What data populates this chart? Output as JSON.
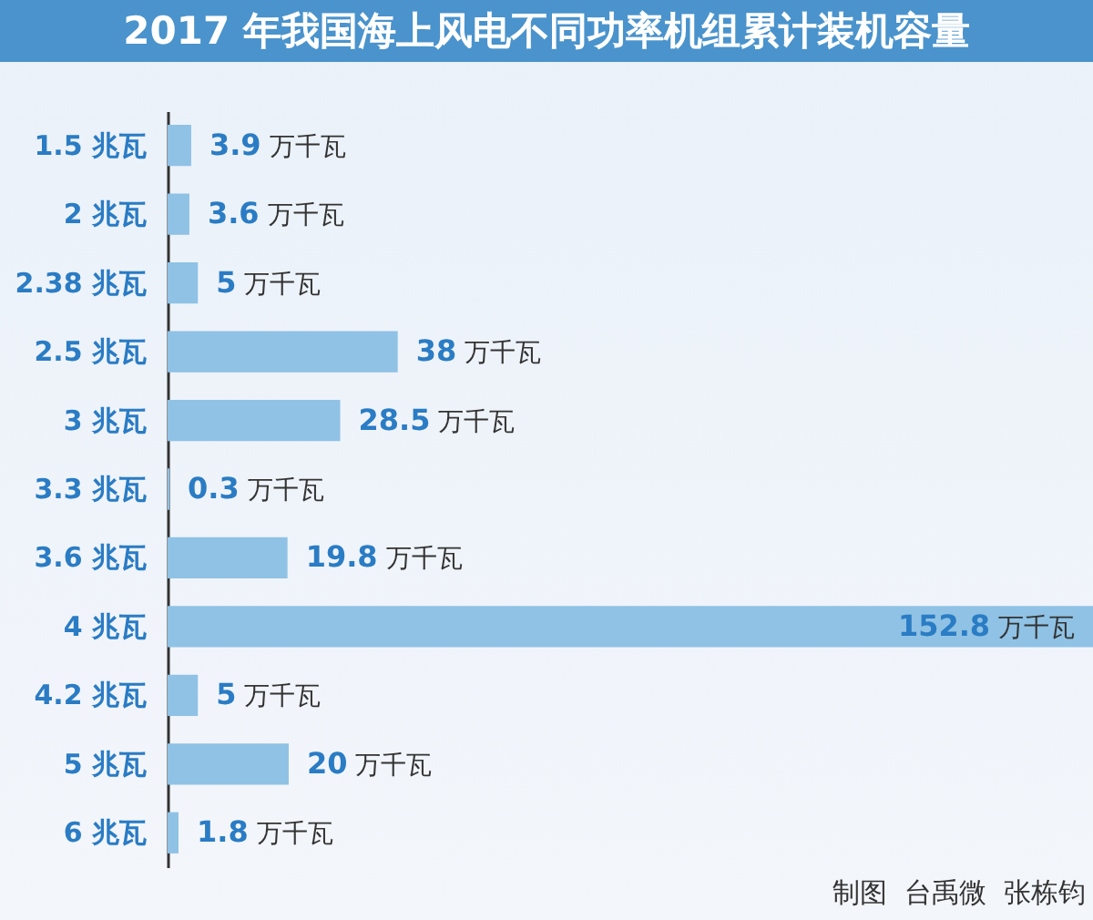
{
  "chart_data": {
    "type": "bar",
    "orientation": "horizontal",
    "title": "2017 年我国海上风电不同功率机组累计装机容量",
    "categories": [
      "1.5 兆瓦",
      "2 兆瓦",
      "2.38 兆瓦",
      "2.5 兆瓦",
      "3 兆瓦",
      "3.3 兆瓦",
      "3.6 兆瓦",
      "4 兆瓦",
      "4.2 兆瓦",
      "5 兆瓦",
      "6 兆瓦"
    ],
    "values": [
      3.9,
      3.6,
      5,
      38,
      28.5,
      0.3,
      19.8,
      152.8,
      5,
      20,
      1.8
    ],
    "value_labels": [
      "3.9 万千瓦",
      "3.6 万千瓦",
      "5 万千瓦",
      "38 万千瓦",
      "28.5 万千瓦",
      "0.3 万千瓦",
      "19.8 万千瓦",
      "152.8 万千瓦",
      "5 万千瓦",
      "20 万千瓦",
      "1.8 万千瓦"
    ],
    "color": "#8fc2e5",
    "annotations": [
      "制图  台禹微  张栋钧"
    ]
  }
}
